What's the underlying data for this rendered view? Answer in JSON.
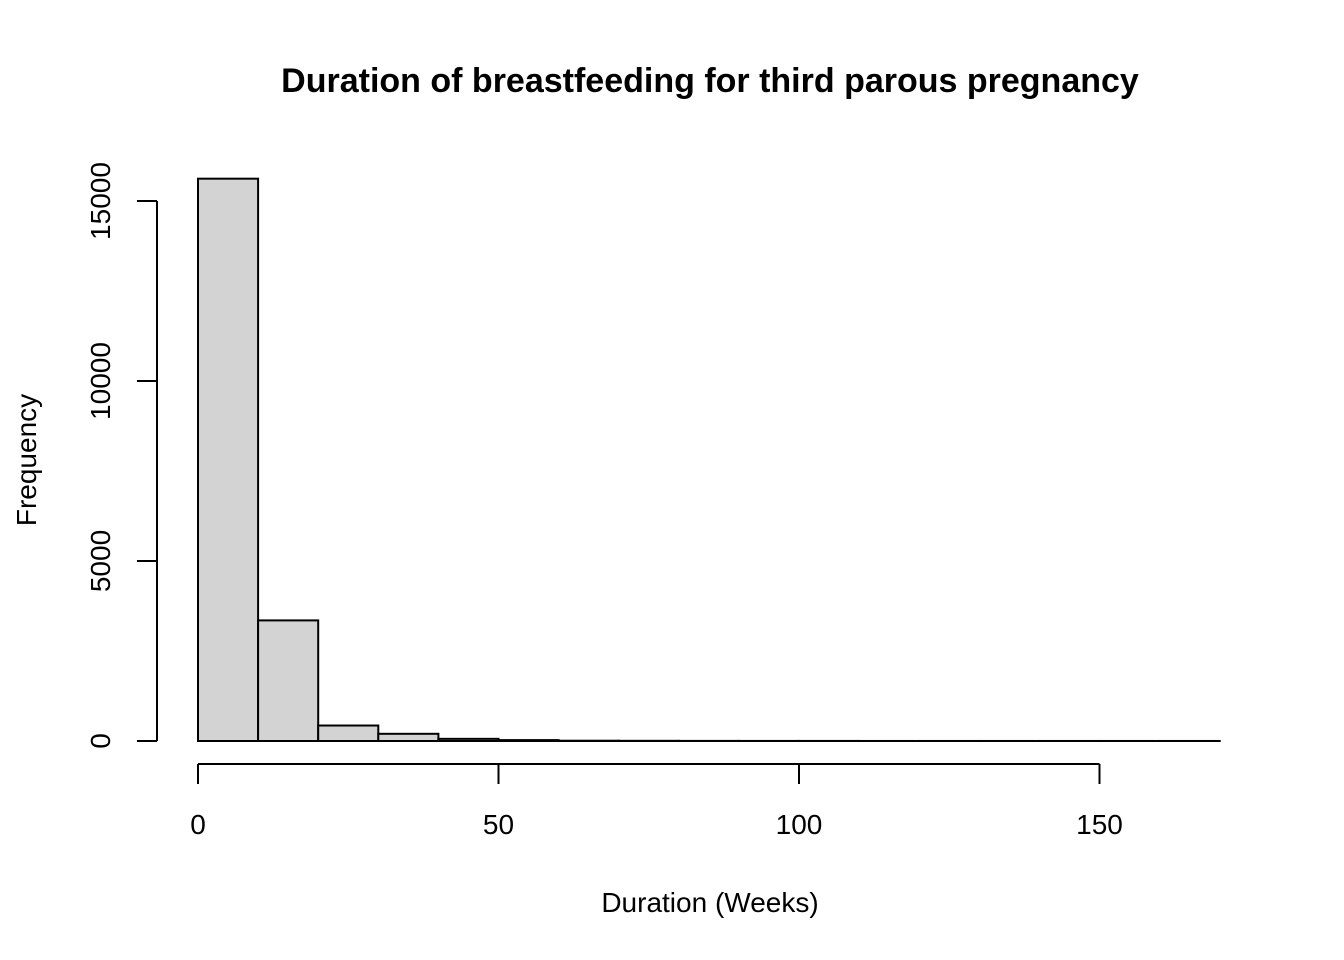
{
  "chart_data": {
    "type": "bar",
    "title": "Duration of breastfeeding for third parous pregnancy",
    "xlabel": "Duration (Weeks)",
    "ylabel": "Frequency",
    "bins": [
      {
        "x0": 0,
        "x1": 10,
        "count": 15620
      },
      {
        "x0": 10,
        "x1": 20,
        "count": 3350
      },
      {
        "x0": 20,
        "x1": 30,
        "count": 430
      },
      {
        "x0": 30,
        "x1": 40,
        "count": 200
      },
      {
        "x0": 40,
        "x1": 50,
        "count": 60
      },
      {
        "x0": 50,
        "x1": 60,
        "count": 25
      },
      {
        "x0": 60,
        "x1": 70,
        "count": 8
      },
      {
        "x0": 70,
        "x1": 80,
        "count": 5
      },
      {
        "x0": 80,
        "x1": 90,
        "count": 3
      },
      {
        "x0": 90,
        "x1": 100,
        "count": 2
      },
      {
        "x0": 100,
        "x1": 110,
        "count": 2
      },
      {
        "x0": 110,
        "x1": 120,
        "count": 1
      },
      {
        "x0": 120,
        "x1": 130,
        "count": 1
      },
      {
        "x0": 130,
        "x1": 140,
        "count": 1
      },
      {
        "x0": 140,
        "x1": 150,
        "count": 1
      },
      {
        "x0": 150,
        "x1": 160,
        "count": 1
      },
      {
        "x0": 160,
        "x1": 170,
        "count": 1
      }
    ],
    "xlim": [
      0,
      170
    ],
    "ylim": [
      0,
      15620
    ],
    "x_ticks": [
      0,
      50,
      100,
      150
    ],
    "y_ticks": [
      0,
      5000,
      10000,
      15000
    ],
    "grid": false,
    "bar_color": "#d3d3d3",
    "edge_color": "#000000"
  }
}
